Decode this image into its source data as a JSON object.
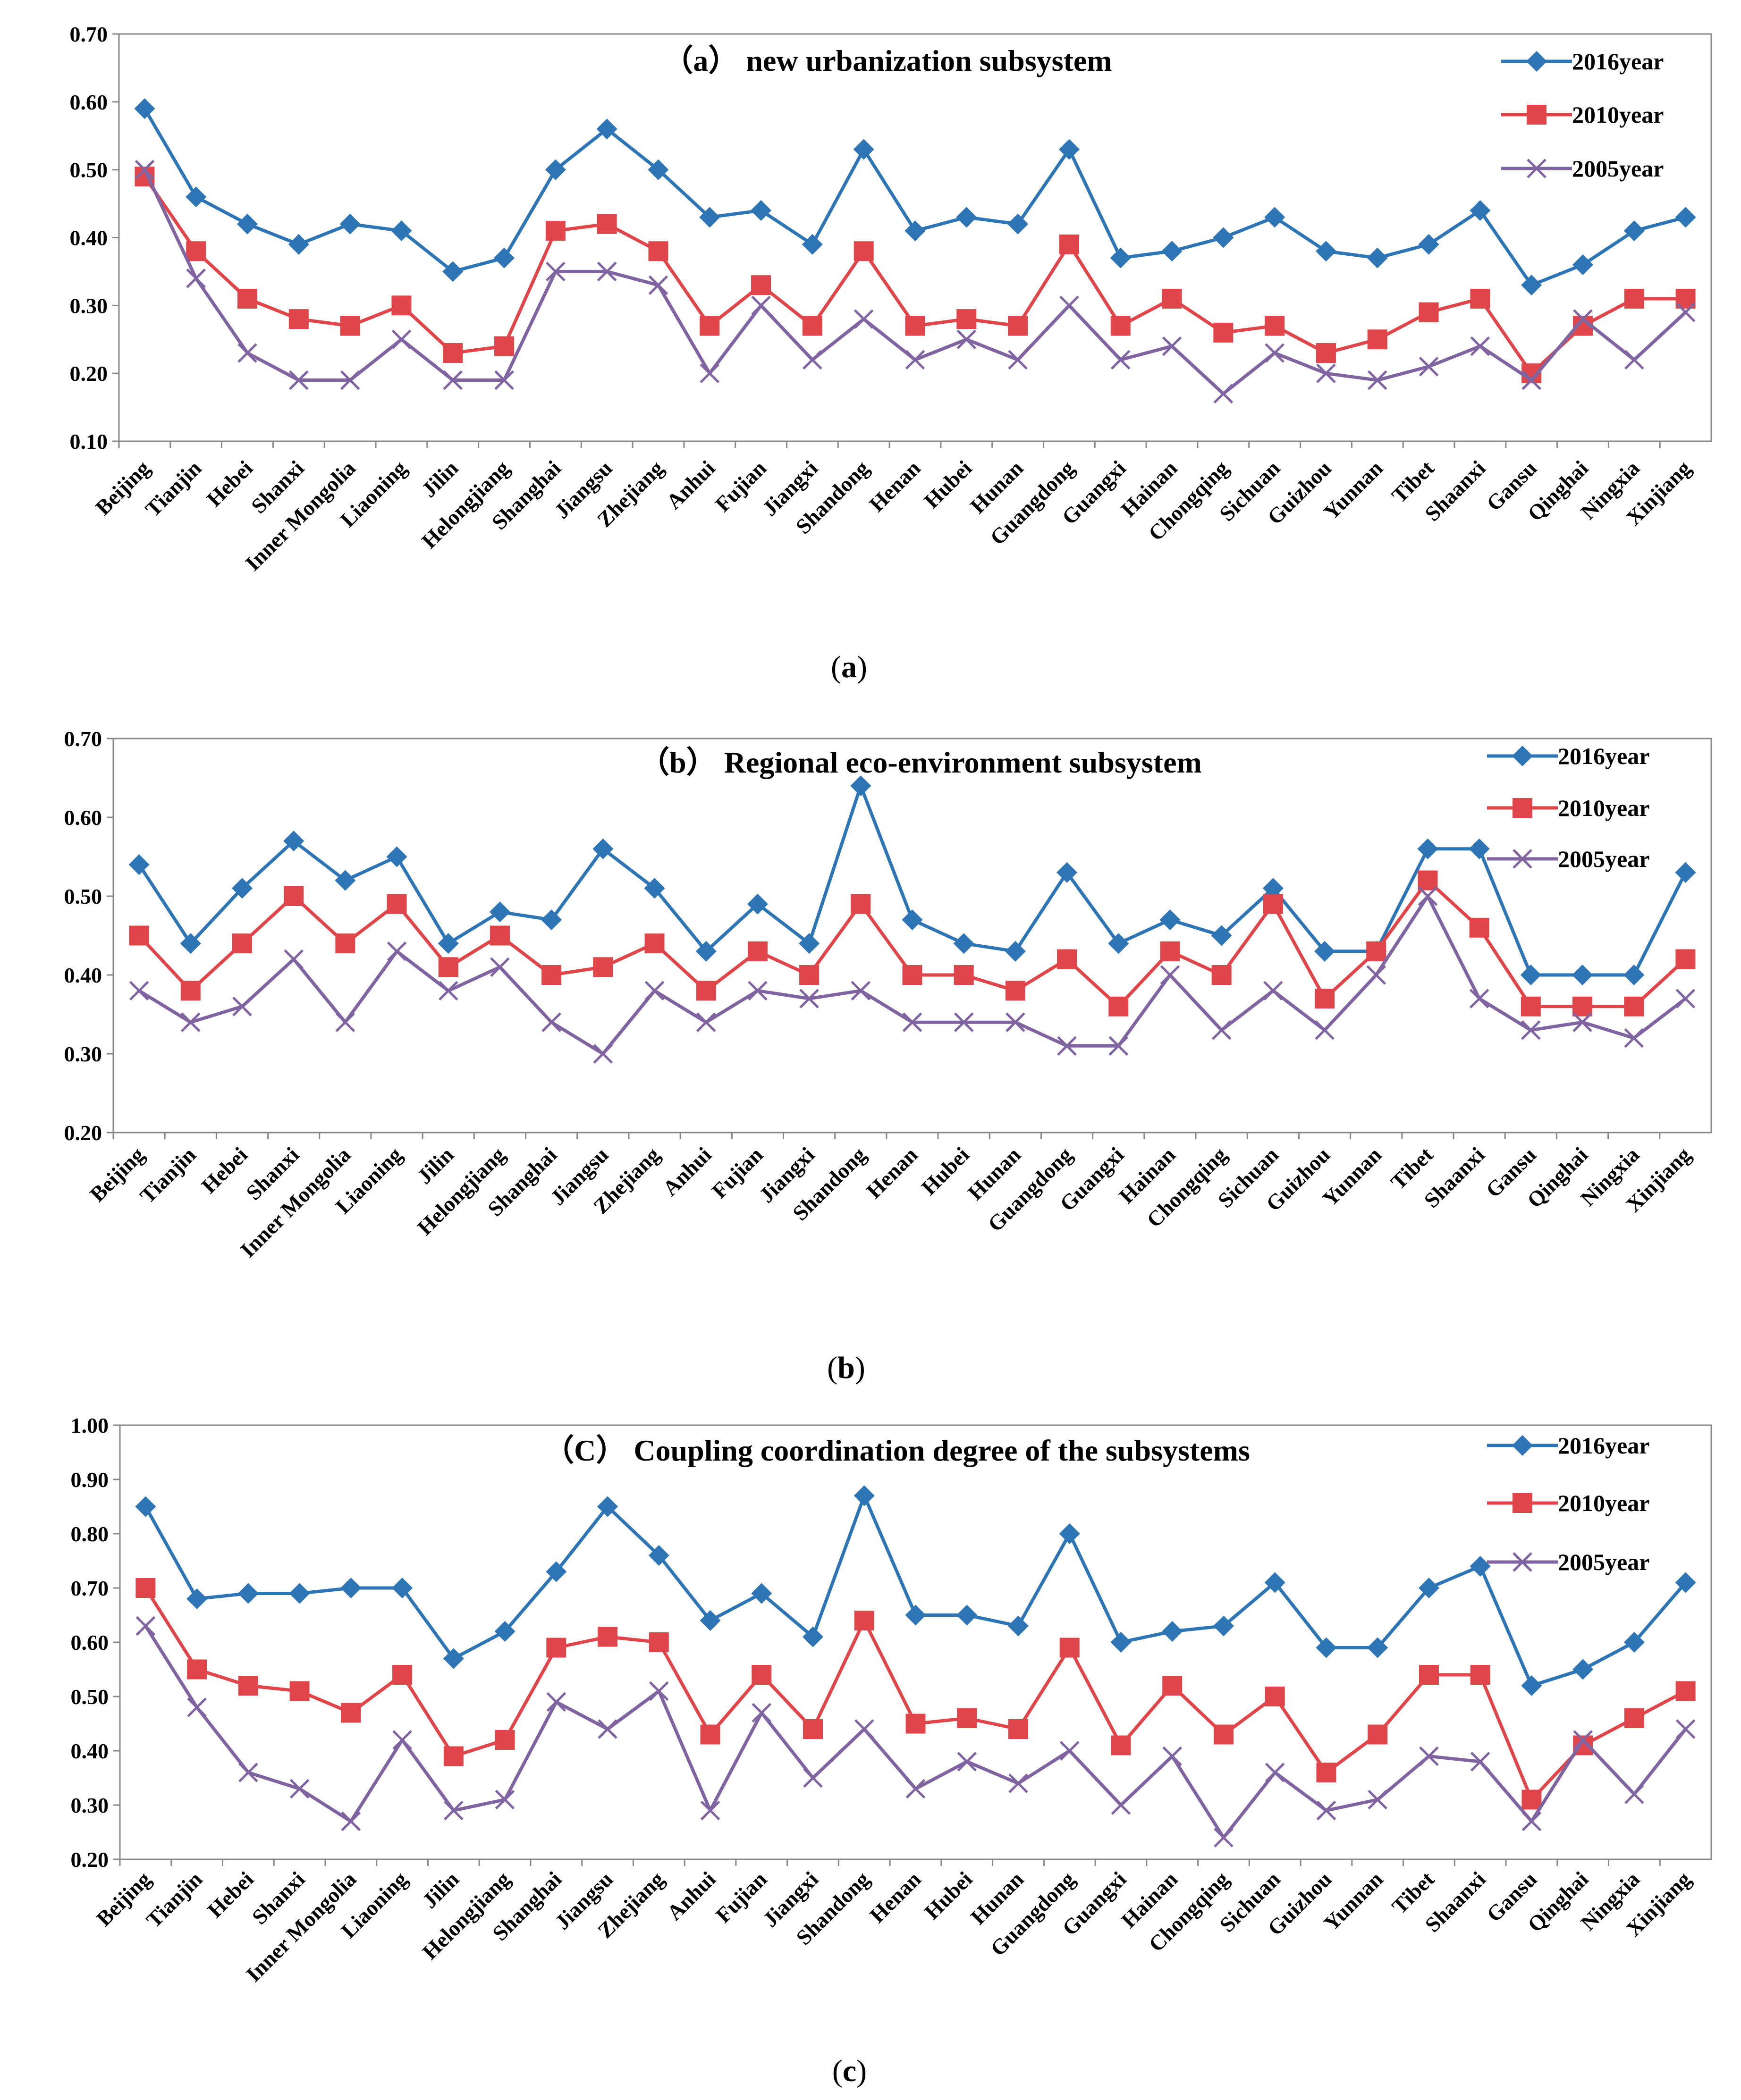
{
  "chart_data": [
    {
      "type": "line",
      "title": "（a） new urbanization  subsystem",
      "caption_letter": "a",
      "ylim": [
        0.1,
        0.7
      ],
      "yticks": [
        "0.10",
        "0.20",
        "0.30",
        "0.40",
        "0.50",
        "0.60",
        "0.70"
      ],
      "categories": [
        "Beijing",
        "Tianjin",
        "Hebei",
        "Shanxi",
        "Inner Mongolia",
        "Liaoning",
        "Jilin",
        "Helongjiang",
        "Shanghai",
        "Jiangsu",
        "Zhejiang",
        "Anhui",
        "Fujian",
        "Jiangxi",
        "Shandong",
        "Henan",
        "Hubei",
        "Hunan",
        "Guangdong",
        "Guangxi",
        "Hainan",
        "Chongqing",
        "Sichuan",
        "Guizhou",
        "Yunnan",
        "Tibet",
        "Shaanxi",
        "Gansu",
        "Qinghai",
        "Ningxia",
        "Xinjiang"
      ],
      "series": [
        {
          "name": "2016year",
          "color": "#2E75B6",
          "marker": "diamond",
          "values": [
            0.59,
            0.46,
            0.42,
            0.39,
            0.42,
            0.41,
            0.35,
            0.37,
            0.5,
            0.56,
            0.5,
            0.43,
            0.44,
            0.39,
            0.53,
            0.41,
            0.43,
            0.42,
            0.53,
            0.37,
            0.38,
            0.4,
            0.43,
            0.38,
            0.37,
            0.39,
            0.44,
            0.33,
            0.36,
            0.41,
            0.43
          ]
        },
        {
          "name": "2010year",
          "color": "#E0454A",
          "marker": "square",
          "values": [
            0.49,
            0.38,
            0.31,
            0.28,
            0.27,
            0.3,
            0.23,
            0.24,
            0.41,
            0.42,
            0.38,
            0.27,
            0.33,
            0.27,
            0.38,
            0.27,
            0.28,
            0.27,
            0.39,
            0.27,
            0.31,
            0.26,
            0.27,
            0.23,
            0.25,
            0.29,
            0.31,
            0.2,
            0.27,
            0.31,
            0.31
          ]
        },
        {
          "name": "2005year",
          "color": "#8064A2",
          "marker": "x",
          "values": [
            0.5,
            0.34,
            0.23,
            0.19,
            0.19,
            0.25,
            0.19,
            0.19,
            0.35,
            0.35,
            0.33,
            0.2,
            0.3,
            0.22,
            0.28,
            0.22,
            0.25,
            0.22,
            0.3,
            0.22,
            0.24,
            0.17,
            0.23,
            0.2,
            0.19,
            0.21,
            0.24,
            0.19,
            0.28,
            0.22,
            0.29
          ]
        }
      ]
    },
    {
      "type": "line",
      "title": "（b） Regional eco-environment subsystem",
      "caption_letter": "b",
      "ylim": [
        0.2,
        0.7
      ],
      "yticks": [
        "0.20",
        "0.30",
        "0.40",
        "0.50",
        "0.60",
        "0.70"
      ],
      "categories": [
        "Beijing",
        "Tianjin",
        "Hebei",
        "Shanxi",
        "Inner Mongolia",
        "Liaoning",
        "Jilin",
        "Helongjiang",
        "Shanghai",
        "Jiangsu",
        "Zhejiang",
        "Anhui",
        "Fujian",
        "Jiangxi",
        "Shandong",
        "Henan",
        "Hubei",
        "Hunan",
        "Guangdong",
        "Guangxi",
        "Hainan",
        "Chongqing",
        "Sichuan",
        "Guizhou",
        "Yunnan",
        "Tibet",
        "Shaanxi",
        "Gansu",
        "Qinghai",
        "Ningxia",
        "Xinjiang"
      ],
      "series": [
        {
          "name": "2016year",
          "color": "#2E75B6",
          "marker": "diamond",
          "values": [
            0.54,
            0.44,
            0.51,
            0.57,
            0.52,
            0.55,
            0.44,
            0.48,
            0.47,
            0.56,
            0.51,
            0.43,
            0.49,
            0.44,
            0.64,
            0.47,
            0.44,
            0.43,
            0.53,
            0.44,
            0.47,
            0.45,
            0.51,
            0.43,
            0.43,
            0.56,
            0.56,
            0.4,
            0.4,
            0.4,
            0.53
          ]
        },
        {
          "name": "2010year",
          "color": "#E0454A",
          "marker": "square",
          "values": [
            0.45,
            0.38,
            0.44,
            0.5,
            0.44,
            0.49,
            0.41,
            0.45,
            0.4,
            0.41,
            0.44,
            0.38,
            0.43,
            0.4,
            0.49,
            0.4,
            0.4,
            0.38,
            0.42,
            0.36,
            0.43,
            0.4,
            0.49,
            0.37,
            0.43,
            0.52,
            0.46,
            0.36,
            0.36,
            0.36,
            0.42
          ]
        },
        {
          "name": "2005year",
          "color": "#8064A2",
          "marker": "x",
          "values": [
            0.38,
            0.34,
            0.36,
            0.42,
            0.34,
            0.43,
            0.38,
            0.41,
            0.34,
            0.3,
            0.38,
            0.34,
            0.38,
            0.37,
            0.38,
            0.34,
            0.34,
            0.34,
            0.31,
            0.31,
            0.4,
            0.33,
            0.38,
            0.33,
            0.4,
            0.5,
            0.37,
            0.33,
            0.34,
            0.32,
            0.37
          ]
        }
      ]
    },
    {
      "type": "line",
      "title": "（C） Coupling  coordination  degree of the subsystems",
      "caption_letter": "c",
      "ylim": [
        0.2,
        1.0
      ],
      "yticks": [
        "0.20",
        "0.30",
        "0.40",
        "0.50",
        "0.60",
        "0.70",
        "0.80",
        "0.90",
        "1.00"
      ],
      "categories": [
        "Beijing",
        "Tianjin",
        "Hebei",
        "Shanxi",
        "Inner Mongolia",
        "Liaoning",
        "Jilin",
        "Helongjiang",
        "Shanghai",
        "Jiangsu",
        "Zhejiang",
        "Anhui",
        "Fujian",
        "Jiangxi",
        "Shandong",
        "Henan",
        "Hubei",
        "Hunan",
        "Guangdong",
        "Guangxi",
        "Hainan",
        "Chongqing",
        "Sichuan",
        "Guizhou",
        "Yunnan",
        "Tibet",
        "Shaanxi",
        "Gansu",
        "Qinghai",
        "Ningxia",
        "Xinjiang"
      ],
      "series": [
        {
          "name": "2016year",
          "color": "#2E75B6",
          "marker": "diamond",
          "values": [
            0.85,
            0.68,
            0.69,
            0.69,
            0.7,
            0.7,
            0.57,
            0.62,
            0.73,
            0.85,
            0.76,
            0.64,
            0.69,
            0.61,
            0.87,
            0.65,
            0.65,
            0.63,
            0.8,
            0.6,
            0.62,
            0.63,
            0.71,
            0.59,
            0.59,
            0.7,
            0.74,
            0.52,
            0.55,
            0.6,
            0.71
          ]
        },
        {
          "name": "2010year",
          "color": "#E0454A",
          "marker": "square",
          "values": [
            0.7,
            0.55,
            0.52,
            0.51,
            0.47,
            0.54,
            0.39,
            0.42,
            0.59,
            0.61,
            0.6,
            0.43,
            0.54,
            0.44,
            0.64,
            0.45,
            0.46,
            0.44,
            0.59,
            0.41,
            0.52,
            0.43,
            0.5,
            0.36,
            0.43,
            0.54,
            0.54,
            0.31,
            0.41,
            0.46,
            0.51
          ]
        },
        {
          "name": "2005year",
          "color": "#8064A2",
          "marker": "x",
          "values": [
            0.63,
            0.48,
            0.36,
            0.33,
            0.27,
            0.42,
            0.29,
            0.31,
            0.49,
            0.44,
            0.51,
            0.29,
            0.47,
            0.35,
            0.44,
            0.33,
            0.38,
            0.34,
            0.4,
            0.3,
            0.39,
            0.24,
            0.36,
            0.29,
            0.31,
            0.39,
            0.38,
            0.27,
            0.42,
            0.32,
            0.44
          ]
        }
      ]
    }
  ]
}
